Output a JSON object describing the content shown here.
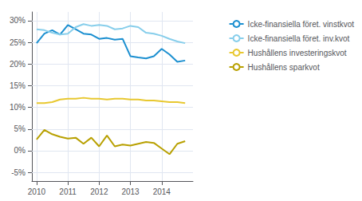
{
  "chart_data": {
    "type": "line",
    "x": [
      2010.0,
      2010.25,
      2010.5,
      2010.75,
      2011.0,
      2011.25,
      2011.5,
      2011.75,
      2012.0,
      2012.25,
      2012.5,
      2012.75,
      2013.0,
      2013.25,
      2013.5,
      2013.75,
      2014.0,
      2014.25,
      2014.5,
      2014.75
    ],
    "series": [
      {
        "name": "Icke-finansiella föret. vinstkvot",
        "color": "#1B8FD0",
        "values": [
          0.248,
          0.27,
          0.278,
          0.268,
          0.29,
          0.28,
          0.27,
          0.268,
          0.258,
          0.26,
          0.256,
          0.258,
          0.218,
          0.215,
          0.213,
          0.218,
          0.235,
          0.222,
          0.205,
          0.208
        ]
      },
      {
        "name": "Icke-finansiella föret. inv.kvot",
        "color": "#87CEEB",
        "values": [
          0.28,
          0.278,
          0.272,
          0.268,
          0.27,
          0.285,
          0.292,
          0.288,
          0.29,
          0.288,
          0.28,
          0.282,
          0.288,
          0.285,
          0.272,
          0.27,
          0.265,
          0.258,
          0.252,
          0.248
        ]
      },
      {
        "name": "Hushållens investeringskvot",
        "color": "#E8C830",
        "values": [
          0.11,
          0.11,
          0.112,
          0.118,
          0.12,
          0.12,
          0.122,
          0.12,
          0.12,
          0.118,
          0.12,
          0.12,
          0.118,
          0.118,
          0.116,
          0.116,
          0.114,
          0.112,
          0.112,
          0.11
        ]
      },
      {
        "name": "Hushållens sparkvot",
        "color": "#B8A000",
        "values": [
          0.026,
          0.048,
          0.038,
          0.032,
          0.028,
          0.03,
          0.016,
          0.03,
          0.01,
          0.035,
          0.01,
          0.014,
          0.012,
          0.016,
          0.02,
          0.018,
          0.005,
          -0.008,
          0.016,
          0.022
        ]
      }
    ],
    "xlim": [
      2009.85,
      2015.0
    ],
    "xticks": [
      2010,
      2011,
      2012,
      2013,
      2014
    ],
    "ylim": [
      -0.07,
      0.32
    ],
    "yticks": [
      {
        "value": -0.05,
        "label": "-5%"
      },
      {
        "value": 0.0,
        "label": "0%"
      },
      {
        "value": 0.05,
        "label": "5%"
      },
      {
        "value": 0.1,
        "label": "10%"
      },
      {
        "value": 0.15,
        "label": "15%"
      },
      {
        "value": 0.2,
        "label": "20%"
      },
      {
        "value": 0.25,
        "label": "25%"
      },
      {
        "value": 0.3,
        "label": "30%"
      }
    ],
    "grid": true,
    "legend": "right"
  }
}
